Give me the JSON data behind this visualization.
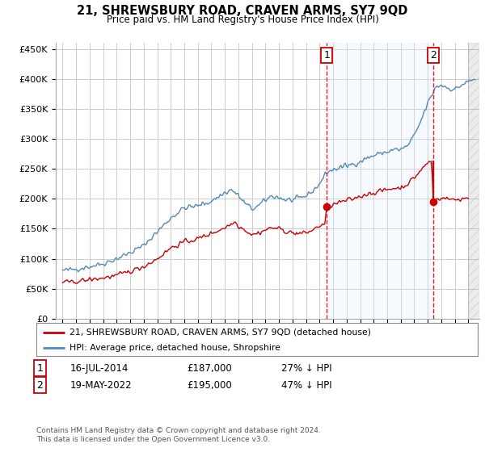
{
  "title": "21, SHREWSBURY ROAD, CRAVEN ARMS, SY7 9QD",
  "subtitle": "Price paid vs. HM Land Registry's House Price Index (HPI)",
  "footer": "Contains HM Land Registry data © Crown copyright and database right 2024.\nThis data is licensed under the Open Government Licence v3.0.",
  "legend_line1": "21, SHREWSBURY ROAD, CRAVEN ARMS, SY7 9QD (detached house)",
  "legend_line2": "HPI: Average price, detached house, Shropshire",
  "annotation1": {
    "label": "1",
    "date": "16-JUL-2014",
    "price": "£187,000",
    "note": "27% ↓ HPI"
  },
  "annotation2": {
    "label": "2",
    "date": "19-MAY-2022",
    "price": "£195,000",
    "note": "47% ↓ HPI"
  },
  "red_color": "#cc0000",
  "blue_color": "#5588bb",
  "fill_color": "#ddeeff",
  "vline_color": "#dd2222",
  "grid_color": "#cccccc",
  "background_color": "#ffffff",
  "ylim": [
    0,
    460000
  ],
  "yticks": [
    0,
    50000,
    100000,
    150000,
    200000,
    250000,
    300000,
    350000,
    400000,
    450000
  ],
  "ytick_labels": [
    "£0",
    "£50K",
    "£100K",
    "£150K",
    "£200K",
    "£250K",
    "£300K",
    "£350K",
    "£400K",
    "£450K"
  ],
  "sale1_year": 2014.54,
  "sale1_price": 187000,
  "sale2_year": 2022.38,
  "sale2_price": 195000,
  "xlim_start": 1994.5,
  "xlim_end": 2025.8
}
